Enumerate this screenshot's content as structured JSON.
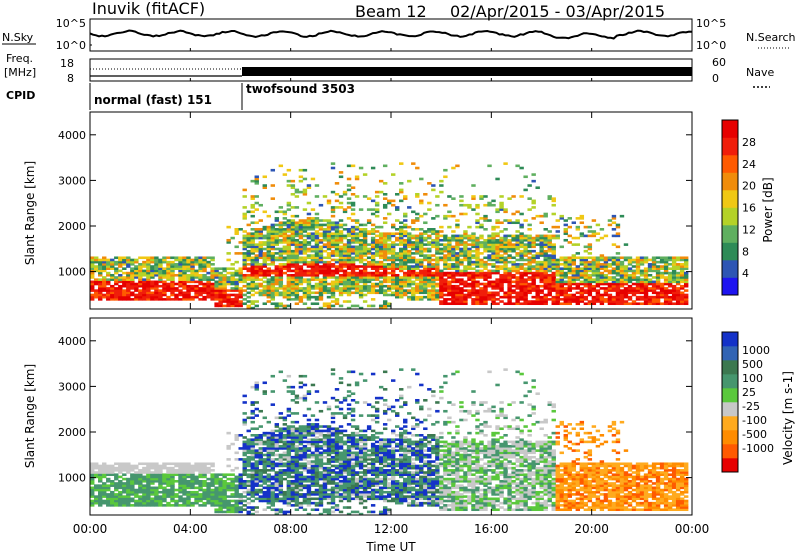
{
  "header": {
    "title": "Inuvik (fitACF)",
    "beam": "Beam 12",
    "date_range": "02/Apr/2015 - 03/Apr/2015"
  },
  "top_panels": {
    "nsky": {
      "label": "N.Sky",
      "ticks_left": [
        "10^5",
        "10^0"
      ],
      "ticks_right": [
        "10^5",
        "10^0"
      ],
      "right_label": "N.Search"
    },
    "freq": {
      "label_line1": "Freq.",
      "label_line2": "[MHz]",
      "ticks_left": [
        "18",
        "8"
      ],
      "ticks_right": [
        "60",
        "0"
      ],
      "right_label": "Nave"
    },
    "cpid": {
      "label": "CPID",
      "modes": [
        "normal (fast) 151",
        "twofsound 3503"
      ]
    }
  },
  "chart_data": [
    {
      "type": "heatmap",
      "title": "",
      "ylabel": "Slant Range [km]",
      "xlabel": "",
      "x_ticks": [
        "00:00",
        "04:00",
        "08:00",
        "12:00",
        "16:00",
        "20:00",
        "00:00"
      ],
      "y_ticks": [
        "1000",
        "2000",
        "3000",
        "4000"
      ],
      "ylim": [
        180,
        4500
      ],
      "xlim_hours": [
        0,
        24
      ],
      "colorbar": {
        "label": "Power [dB]",
        "ticks": [
          "4",
          "8",
          "12",
          "16",
          "20",
          "24",
          "28"
        ],
        "colors": [
          "#1e14f0",
          "#2d55b4",
          "#2e8b57",
          "#5faf5f",
          "#b4d228",
          "#f0c814",
          "#f08c0a",
          "#ff5a00",
          "#f01e0a",
          "#e60000"
        ]
      }
    },
    {
      "type": "heatmap",
      "title": "",
      "ylabel": "Slant Range [km]",
      "xlabel": "Time UT",
      "x_ticks": [
        "00:00",
        "04:00",
        "08:00",
        "12:00",
        "16:00",
        "20:00",
        "00:00"
      ],
      "y_ticks": [
        "1000",
        "2000",
        "3000",
        "4000"
      ],
      "ylim": [
        180,
        4500
      ],
      "xlim_hours": [
        0,
        24
      ],
      "colorbar": {
        "label": "Velocity [m s-1]",
        "ticks": [
          "1000",
          "500",
          "100",
          "25",
          "-25",
          "-100",
          "-500",
          "-1000"
        ],
        "colors": [
          "#1432c8",
          "#3264b4",
          "#3c7850",
          "#46966e",
          "#5ac83c",
          "#c8c8c8",
          "#ffaa1e",
          "#ff8c00",
          "#ff5a00",
          "#e60000"
        ]
      }
    }
  ]
}
